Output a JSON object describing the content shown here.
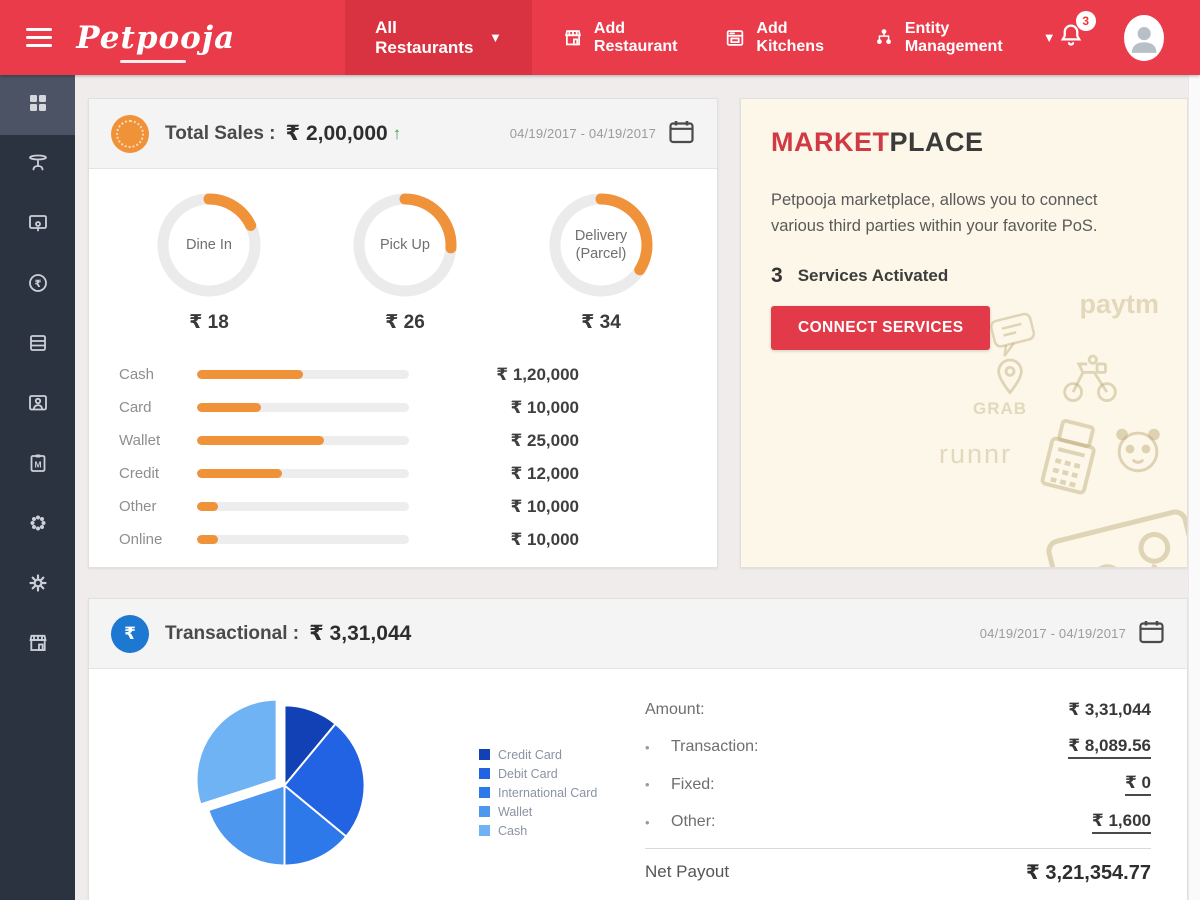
{
  "navbar": {
    "logo_text": "Petpooja",
    "all_restaurants_label": "All Restaurants",
    "add_restaurant_label": "Add Restaurant",
    "add_kitchens_label": "Add Kitchens",
    "entity_management_label": "Entity Management",
    "notification_badge": "3"
  },
  "sidebar": {
    "icons": [
      "dashboard",
      "dining-table",
      "customer-display",
      "payments",
      "billing",
      "customers",
      "menu-clipboard",
      "integrations",
      "settings",
      "store"
    ]
  },
  "total_sales": {
    "title": "Total Sales :",
    "amount": "₹ 2,00,000",
    "trend": "↑",
    "date_range": "04/19/2017 - 04/19/2017",
    "donuts": [
      {
        "label": "Dine In",
        "value": "₹ 18",
        "pct": 18
      },
      {
        "label": "Pick Up",
        "value": "₹ 26",
        "pct": 26
      },
      {
        "label": "Delivery (Parcel)",
        "value": "₹ 34",
        "pct": 34
      }
    ],
    "payments": [
      {
        "label": "Cash",
        "value": "₹ 1,20,000",
        "fill_pct": 50
      },
      {
        "label": "Card",
        "value": "₹ 10,000",
        "fill_pct": 30
      },
      {
        "label": "Wallet",
        "value": "₹ 25,000",
        "fill_pct": 60
      },
      {
        "label": "Credit",
        "value": "₹ 12,000",
        "fill_pct": 40
      },
      {
        "label": "Other",
        "value": "₹ 10,000",
        "fill_pct": 10
      },
      {
        "label": "Online",
        "value": "₹ 10,000",
        "fill_pct": 10
      }
    ]
  },
  "marketplace": {
    "title_accent": "MARKET",
    "title_rest": "PLACE",
    "description": "Petpooja marketplace, allows you to connect various third parties within your favorite PoS.",
    "services_count": "3",
    "services_label": "Services Activated",
    "button_label": "CONNECT SERVICES",
    "watermarks": [
      "paytm",
      "GRAB",
      "runnr"
    ]
  },
  "transactional": {
    "title": "Transactional :",
    "amount": "₹ 3,31,044",
    "date_range": "04/19/2017 - 04/19/2017",
    "summary": {
      "amount_label": "Amount:",
      "amount_value": "₹ 3,31,044",
      "transaction_label": "Transaction:",
      "transaction_value": "₹ 8,089.56",
      "fixed_label": "Fixed:",
      "fixed_value": "₹ 0",
      "other_label": "Other:",
      "other_value": "₹ 1,600",
      "net_label": "Net Payout",
      "net_value": "₹ 3,21,354.77"
    }
  },
  "chart_data": [
    {
      "type": "donut",
      "title": "Total Sales by order type",
      "items": [
        {
          "label": "Dine In",
          "value": 18
        },
        {
          "label": "Pick Up",
          "value": 26
        },
        {
          "label": "Delivery (Parcel)",
          "value": 34
        }
      ],
      "max": 100,
      "color": "#f0923a",
      "track_color": "#ebebeb"
    },
    {
      "type": "bar",
      "title": "Payments breakdown",
      "orientation": "horizontal",
      "categories": [
        "Cash",
        "Card",
        "Wallet",
        "Credit",
        "Other",
        "Online"
      ],
      "values": [
        120000,
        10000,
        25000,
        12000,
        10000,
        10000
      ],
      "value_labels": [
        "₹ 1,20,000",
        "₹ 10,000",
        "₹ 25,000",
        "₹ 12,000",
        "₹ 10,000",
        "₹ 10,000"
      ],
      "bar_fill_pct": [
        50,
        30,
        60,
        40,
        10,
        10
      ],
      "color": "#f0923a"
    },
    {
      "type": "pie",
      "title": "Transactional payment mix",
      "labels": [
        "Credit Card",
        "Debit Card",
        "International Card",
        "Wallet",
        "Cash"
      ],
      "values": [
        11,
        25,
        14,
        20,
        30
      ],
      "colors": [
        "#1141b4",
        "#2263e3",
        "#2e79e9",
        "#4e97ef",
        "#6fb3f4"
      ],
      "exploded_label": "Cash",
      "legend_position": "right"
    }
  ],
  "colors": {
    "navbar": "#ea3b4b",
    "navbar_active": "#d93240",
    "sidebar": "#2c3340",
    "accent_orange": "#f0923a",
    "accent_blue": "#1d78d2",
    "marketplace_bg": "#fcf7e8",
    "button_red": "#e23a49",
    "trend_green": "#43a047"
  }
}
